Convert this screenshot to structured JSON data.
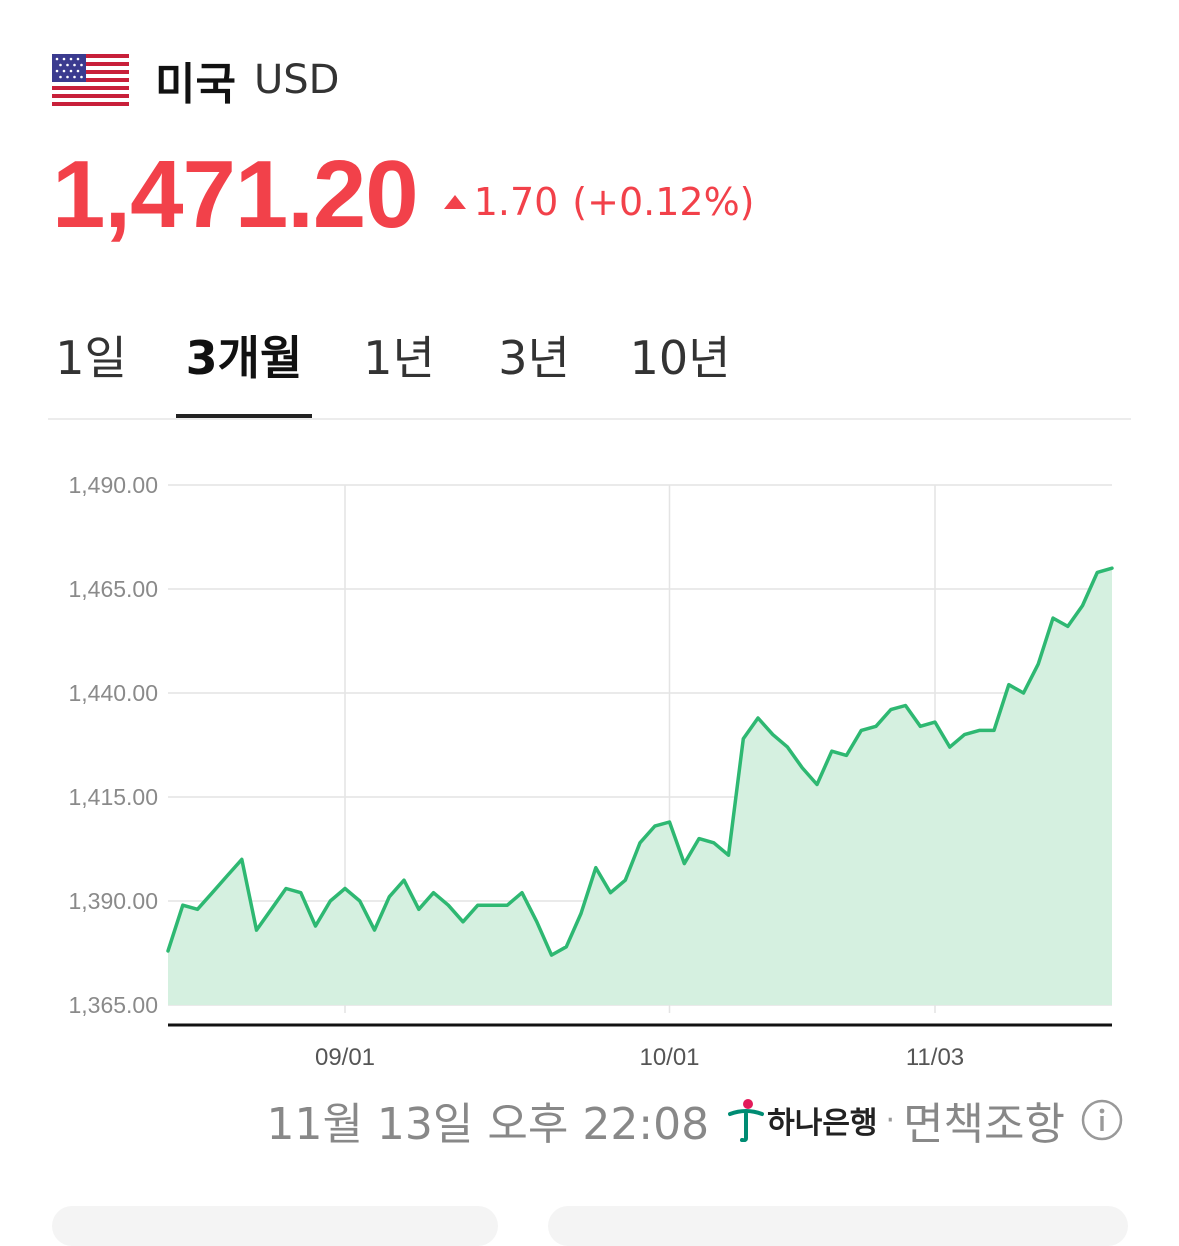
{
  "header": {
    "country": "미국",
    "code": "USD",
    "flag_icon": "us-flag-icon"
  },
  "quote": {
    "price": "1,471.20",
    "change": "1.70",
    "change_percent": "(+0.12%)",
    "direction": "up",
    "color": "#f2414a"
  },
  "tabs": [
    {
      "label": "1일",
      "active": false
    },
    {
      "label": "3개월",
      "active": true
    },
    {
      "label": "1년",
      "active": false
    },
    {
      "label": "3년",
      "active": false
    },
    {
      "label": "10년",
      "active": false
    }
  ],
  "chart_data": {
    "type": "area",
    "ylim": [
      1365,
      1490
    ],
    "yticks": [
      "1,490.00",
      "1,465.00",
      "1,440.00",
      "1,415.00",
      "1,390.00",
      "1,365.00"
    ],
    "ytick_values": [
      1490,
      1465,
      1440,
      1415,
      1390,
      1365
    ],
    "xtick_labels": [
      "09/01",
      "10/01",
      "11/03"
    ],
    "xtick_indices": [
      12,
      34,
      52
    ],
    "line_color": "#2eb872",
    "fill_color": "#d5f0e0",
    "grid": true,
    "values": [
      1378,
      1389,
      1388,
      1392,
      1396,
      1400,
      1383,
      1388,
      1393,
      1392,
      1384,
      1390,
      1393,
      1390,
      1383,
      1391,
      1395,
      1388,
      1392,
      1389,
      1385,
      1389,
      1389,
      1389,
      1392,
      1385,
      1377,
      1379,
      1387,
      1398,
      1392,
      1395,
      1404,
      1408,
      1409,
      1399,
      1405,
      1404,
      1401,
      1429,
      1434,
      1430,
      1427,
      1422,
      1418,
      1426,
      1425,
      1431,
      1432,
      1436,
      1437,
      1432,
      1433,
      1427,
      1430,
      1431,
      1431,
      1442,
      1440,
      1447,
      1458,
      1456,
      1461,
      1469,
      1470
    ]
  },
  "footer": {
    "timestamp": "11월 13일 오후 22:08",
    "bank_name": "하나은행",
    "separator": "·",
    "disclaimer": "면책조항",
    "info_icon": "info-circle-icon",
    "bank_logo": "hana-bank-logo"
  }
}
